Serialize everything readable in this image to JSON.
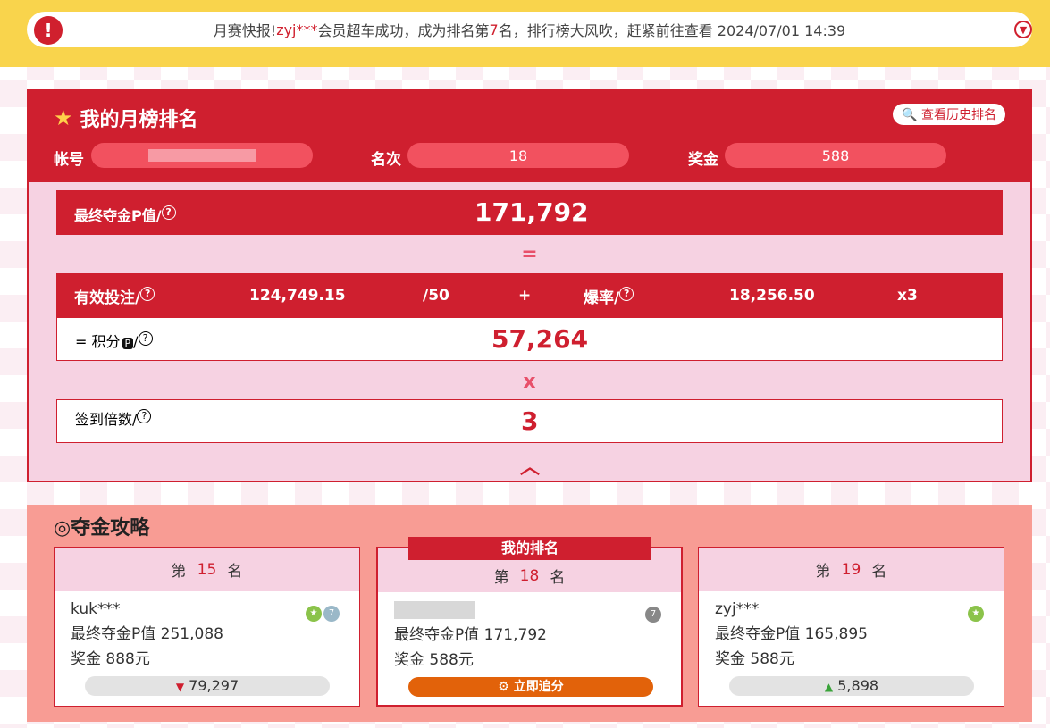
{
  "notice": {
    "prefix": "月赛快报! ",
    "user": "zyj***",
    "mid": "会员超车成功，成为排名第 ",
    "rank": "7",
    "suffix": "名，排行榜大风吹，赶紧前往查看 2024/07/01 14:39"
  },
  "ranking": {
    "title": "我的月榜排名",
    "history_button": "查看历史排名",
    "account_label": "帐号",
    "account_value": "",
    "rank_label": "名次",
    "rank_value": "18",
    "prize_label": "奖金",
    "prize_value": "588"
  },
  "formula": {
    "final_label": "最终夺金P值/",
    "final_value": "171,792",
    "equals": "=",
    "bet_label": "有效投注/",
    "bet_value": "124,749.15",
    "bet_div": "/50",
    "plus": "+",
    "burst_label": "爆率/",
    "burst_value": "18,256.50",
    "burst_mult": "x3",
    "points_prefix": "=  积分",
    "points_icon": "P",
    "points_value": "57,264",
    "times": "x",
    "checkin_label": "签到倍数/",
    "checkin_value": "3",
    "help": "?"
  },
  "strategy": {
    "title": "夺金攻略",
    "my_rank_tag": "我的排名",
    "cards": [
      {
        "pre": "第",
        "rank": "15",
        "post": "名",
        "user": "kuk***",
        "p_line": "最终夺金P值 251,088",
        "prize_line": "奖金 888元",
        "diff": "79,297",
        "dir": "down"
      },
      {
        "pre": "第",
        "rank": "18",
        "post": "名",
        "user": "",
        "p_line": "最终夺金P值 171,792",
        "prize_line": "奖金 588元",
        "action": "立即追分"
      },
      {
        "pre": "第",
        "rank": "19",
        "post": "名",
        "user": "zyj***",
        "p_line": "最终夺金P值 165,895",
        "prize_line": "奖金 588元",
        "diff": "5,898",
        "dir": "up"
      }
    ]
  },
  "colors": {
    "primary": "#cf1f2f",
    "banner": "#f9d44c",
    "section": "#f89c94",
    "action": "#e2620a"
  }
}
